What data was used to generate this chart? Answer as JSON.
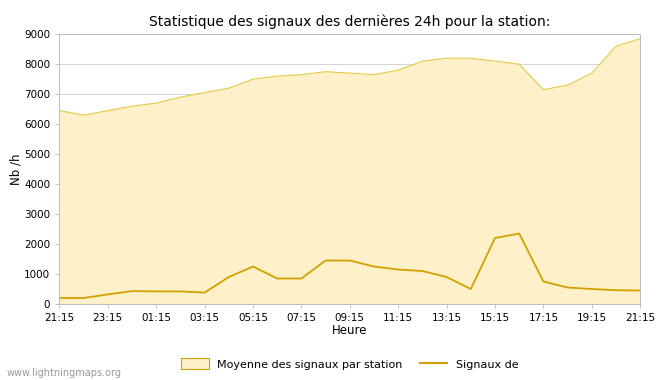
{
  "title": "Statistique des signaux des dernières 24h pour la station:",
  "xlabel": "Heure",
  "ylabel": "Nb /h",
  "ylim": [
    0,
    9000
  ],
  "yticks": [
    0,
    1000,
    2000,
    3000,
    4000,
    5000,
    6000,
    7000,
    8000,
    9000
  ],
  "xtick_labels": [
    "21:15",
    "23:15",
    "01:15",
    "03:15",
    "05:15",
    "07:15",
    "09:15",
    "11:15",
    "13:15",
    "15:15",
    "17:15",
    "19:15",
    "21:15"
  ],
  "fill_color": "#FEF0C8",
  "fill_edge_color": "#E8C840",
  "line_color": "#D4A000",
  "background_color": "#ffffff",
  "plot_bg_color": "#ffffff",
  "grid_color": "#cccccc",
  "watermark": "www.lightningmaps.org",
  "legend_fill": "Moyenne des signaux par station",
  "legend_line": "Signaux de",
  "avg_x": [
    0,
    1,
    2,
    3,
    4,
    5,
    6,
    7,
    8,
    9,
    10,
    11,
    12,
    13,
    14,
    15,
    16,
    17,
    18,
    19,
    20,
    21,
    22,
    23,
    24
  ],
  "avg_y": [
    6450,
    6300,
    6450,
    6600,
    6700,
    6900,
    7050,
    7200,
    7500,
    7600,
    7650,
    7750,
    7700,
    7650,
    7800,
    8100,
    8200,
    8200,
    8100,
    8000,
    7150,
    7300,
    7700,
    8600,
    8850
  ],
  "sig_x": [
    0,
    1,
    2,
    3,
    4,
    5,
    6,
    7,
    8,
    9,
    10,
    11,
    12,
    13,
    14,
    15,
    16,
    17,
    18,
    19,
    20,
    21,
    22,
    23,
    24
  ],
  "sig_y": [
    200,
    200,
    320,
    430,
    420,
    420,
    380,
    900,
    1250,
    850,
    850,
    1450,
    1450,
    1250,
    1150,
    1100,
    900,
    500,
    2200,
    2350,
    750,
    550,
    500,
    460,
    450
  ]
}
